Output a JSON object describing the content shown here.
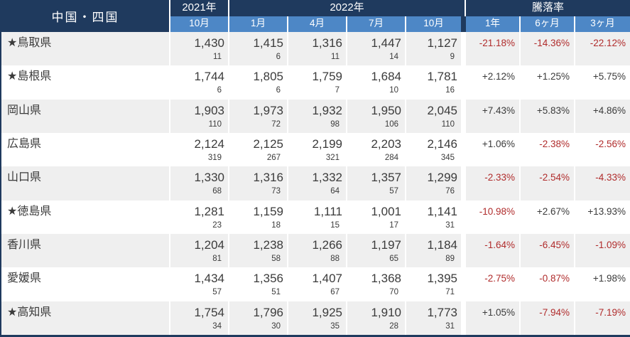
{
  "colors": {
    "navy": "#1f3a5e",
    "blue": "#4d87c6",
    "row_alt": "#efefef",
    "red_negative": "#b02c2c",
    "ink": "#3b3b3b"
  },
  "chart_data": {
    "type": "table",
    "title": "中国・四国",
    "header": {
      "y2021": "2021年",
      "y2022": "2022年",
      "change": "騰落率",
      "sub": [
        "10月",
        "1月",
        "4月",
        "7月",
        "10月",
        "1年",
        "6ヶ月",
        "3ヶ月"
      ]
    },
    "rows": [
      {
        "name": "★鳥取県",
        "values": [
          "1,430",
          "1,415",
          "1,316",
          "1,447",
          "1,127"
        ],
        "counts": [
          "11",
          "6",
          "11",
          "14",
          "9"
        ],
        "changes": [
          "-21.18%",
          "-14.36%",
          "-22.12%"
        ]
      },
      {
        "name": "★島根県",
        "values": [
          "1,744",
          "1,805",
          "1,759",
          "1,684",
          "1,781"
        ],
        "counts": [
          "6",
          "6",
          "7",
          "10",
          "16"
        ],
        "changes": [
          "+2.12%",
          "+1.25%",
          "+5.75%"
        ]
      },
      {
        "name": "岡山県",
        "values": [
          "1,903",
          "1,973",
          "1,932",
          "1,950",
          "2,045"
        ],
        "counts": [
          "110",
          "72",
          "98",
          "106",
          "110"
        ],
        "changes": [
          "+7.43%",
          "+5.83%",
          "+4.86%"
        ]
      },
      {
        "name": "広島県",
        "values": [
          "2,124",
          "2,125",
          "2,199",
          "2,203",
          "2,146"
        ],
        "counts": [
          "319",
          "267",
          "321",
          "284",
          "345"
        ],
        "changes": [
          "+1.06%",
          "-2.38%",
          "-2.56%"
        ]
      },
      {
        "name": "山口県",
        "values": [
          "1,330",
          "1,316",
          "1,332",
          "1,357",
          "1,299"
        ],
        "counts": [
          "68",
          "73",
          "64",
          "57",
          "76"
        ],
        "changes": [
          "-2.33%",
          "-2.54%",
          "-4.33%"
        ]
      },
      {
        "name": "★徳島県",
        "values": [
          "1,281",
          "1,159",
          "1,111",
          "1,001",
          "1,141"
        ],
        "counts": [
          "23",
          "18",
          "15",
          "17",
          "31"
        ],
        "changes": [
          "-10.98%",
          "+2.67%",
          "+13.93%"
        ]
      },
      {
        "name": "香川県",
        "values": [
          "1,204",
          "1,238",
          "1,266",
          "1,197",
          "1,184"
        ],
        "counts": [
          "81",
          "58",
          "88",
          "65",
          "89"
        ],
        "changes": [
          "-1.64%",
          "-6.45%",
          "-1.09%"
        ]
      },
      {
        "name": "愛媛県",
        "values": [
          "1,434",
          "1,356",
          "1,407",
          "1,368",
          "1,395"
        ],
        "counts": [
          "57",
          "51",
          "67",
          "70",
          "71"
        ],
        "changes": [
          "-2.75%",
          "-0.87%",
          "+1.98%"
        ]
      },
      {
        "name": "★高知県",
        "values": [
          "1,754",
          "1,796",
          "1,925",
          "1,910",
          "1,773"
        ],
        "counts": [
          "34",
          "30",
          "35",
          "28",
          "31"
        ],
        "changes": [
          "+1.05%",
          "-7.94%",
          "-7.19%"
        ]
      }
    ]
  }
}
